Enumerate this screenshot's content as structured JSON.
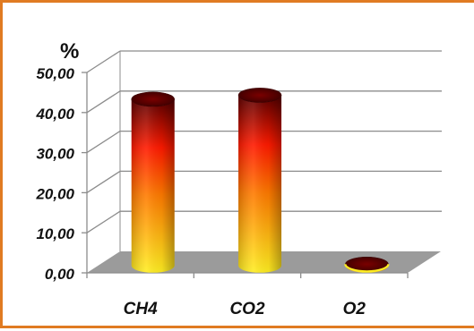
{
  "chart_data": {
    "type": "bar",
    "style": "3d-cylinder",
    "unit_label": "%",
    "categories": [
      "CH4",
      "CO2",
      "O2"
    ],
    "values": [
      41.5,
      42.5,
      0.3
    ],
    "ylim": [
      0,
      50
    ],
    "yticks": [
      "0,00",
      "10,00",
      "20,00",
      "30,00",
      "40,00",
      "50,00"
    ],
    "grid": true,
    "legend": "none"
  },
  "colors": {
    "frame_border": "#e07b22",
    "grid": "#8c8c8c",
    "floor": "#9b9b9b",
    "bar_bottom": "#ffee22",
    "bar_middle": "#ff1a00",
    "bar_top": "#5a0000"
  }
}
